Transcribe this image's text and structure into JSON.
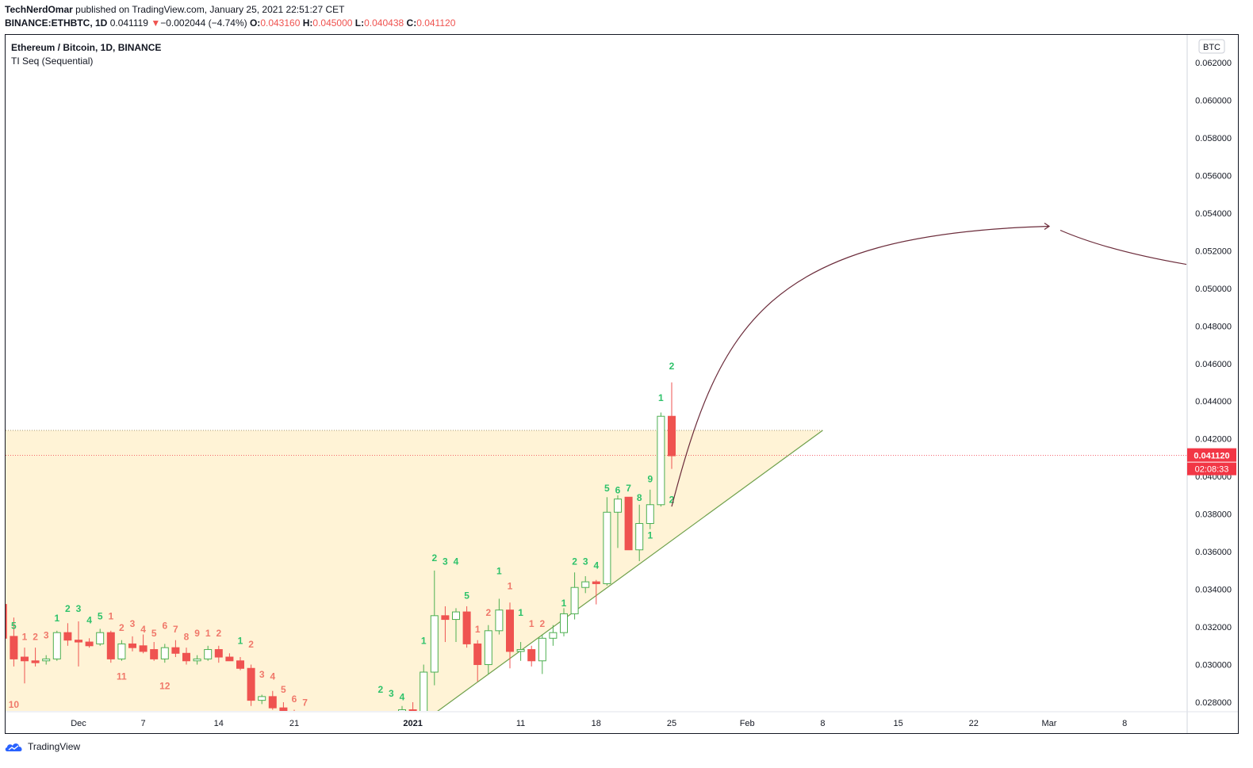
{
  "header": {
    "author": "TechNerdOmar",
    "published_text": "published on TradingView.com, January 25, 2021 22:51:27 CET",
    "symbol": "BINANCE:ETHBTC, 1D",
    "last": "0.041119",
    "change_arrow": "▼",
    "change": "−0.002044 (−4.74%)",
    "o_label": "O:",
    "o_value": "0.043160",
    "h_label": "H:",
    "h_value": "0.045000",
    "l_label": "L:",
    "l_value": "0.040438",
    "c_label": "C:",
    "c_value": "0.041120"
  },
  "legend": {
    "title": "Ethereum / Bitcoin, 1D, BINANCE",
    "indicator": "TI Seq (Sequential)"
  },
  "footer": {
    "brand": "TradingView"
  },
  "colors": {
    "up": "#26a69a",
    "up_fill": "#ffffff",
    "up_border": "#4caf50",
    "down": "#ef5350",
    "seq_up": "#2ec26a",
    "seq_down": "#f0786a",
    "zone_fill": "#fff3d6",
    "trendline": "#6ea04a",
    "arc": "#6b2b3a",
    "price_tag": "#f23645"
  },
  "chart_data": {
    "type": "candlestick",
    "symbol": "ETHBTC",
    "currency_label": "BTC",
    "ylim": [
      0.0276,
      0.063
    ],
    "y_ticks": [
      "0.062000",
      "0.060000",
      "0.058000",
      "0.056000",
      "0.054000",
      "0.052000",
      "0.050000",
      "0.048000",
      "0.046000",
      "0.044000",
      "0.042000",
      "0.040000",
      "0.038000",
      "0.036000",
      "0.034000",
      "0.032000",
      "0.030000",
      "0.028000"
    ],
    "x_ticks": [
      "Dec",
      "7",
      "14",
      "21",
      "2021",
      "11",
      "18",
      "25",
      "Feb",
      "8",
      "15",
      "22",
      "Mar",
      "8"
    ],
    "last_price_label": "0.041120",
    "countdown_label": "02:08:33",
    "candles": [
      {
        "date": "2020-11-24",
        "o": 0.0332,
        "h": 0.0332,
        "l": 0.0314,
        "c": 0.0314
      },
      {
        "date": "2020-11-25",
        "o": 0.0315,
        "h": 0.0325,
        "l": 0.0299,
        "c": 0.0303
      },
      {
        "date": "2020-11-26",
        "o": 0.0304,
        "h": 0.0309,
        "l": 0.029,
        "c": 0.0302
      },
      {
        "date": "2020-11-27",
        "o": 0.0302,
        "h": 0.0309,
        "l": 0.0299,
        "c": 0.0301
      },
      {
        "date": "2020-11-28",
        "o": 0.0302,
        "h": 0.0305,
        "l": 0.03,
        "c": 0.0303
      },
      {
        "date": "2020-11-29",
        "o": 0.0303,
        "h": 0.0318,
        "l": 0.0302,
        "c": 0.0317
      },
      {
        "date": "2020-11-30",
        "o": 0.0317,
        "h": 0.0322,
        "l": 0.031,
        "c": 0.0313
      },
      {
        "date": "2020-12-01",
        "o": 0.0313,
        "h": 0.0323,
        "l": 0.0299,
        "c": 0.0312
      },
      {
        "date": "2020-12-02",
        "o": 0.0312,
        "h": 0.0314,
        "l": 0.0309,
        "c": 0.031
      },
      {
        "date": "2020-12-03",
        "o": 0.0311,
        "h": 0.0319,
        "l": 0.031,
        "c": 0.0317
      },
      {
        "date": "2020-12-04",
        "o": 0.0317,
        "h": 0.0318,
        "l": 0.0301,
        "c": 0.0303
      },
      {
        "date": "2020-12-05",
        "o": 0.0303,
        "h": 0.0313,
        "l": 0.0302,
        "c": 0.0311
      },
      {
        "date": "2020-12-06",
        "o": 0.0311,
        "h": 0.0315,
        "l": 0.0307,
        "c": 0.0309
      },
      {
        "date": "2020-12-07",
        "o": 0.031,
        "h": 0.0316,
        "l": 0.0306,
        "c": 0.0307
      },
      {
        "date": "2020-12-08",
        "o": 0.0308,
        "h": 0.0312,
        "l": 0.0302,
        "c": 0.0303
      },
      {
        "date": "2020-12-09",
        "o": 0.0303,
        "h": 0.0311,
        "l": 0.0301,
        "c": 0.0309
      },
      {
        "date": "2020-12-10",
        "o": 0.0309,
        "h": 0.0313,
        "l": 0.0304,
        "c": 0.0306
      },
      {
        "date": "2020-12-11",
        "o": 0.0306,
        "h": 0.0309,
        "l": 0.03,
        "c": 0.0302
      },
      {
        "date": "2020-12-12",
        "o": 0.0302,
        "h": 0.0305,
        "l": 0.03,
        "c": 0.0303
      },
      {
        "date": "2020-12-13",
        "o": 0.0303,
        "h": 0.031,
        "l": 0.0302,
        "c": 0.0308
      },
      {
        "date": "2020-12-14",
        "o": 0.0308,
        "h": 0.031,
        "l": 0.0301,
        "c": 0.0304
      },
      {
        "date": "2020-12-15",
        "o": 0.0304,
        "h": 0.0306,
        "l": 0.0302,
        "c": 0.0302
      },
      {
        "date": "2020-12-16",
        "o": 0.0302,
        "h": 0.0304,
        "l": 0.0297,
        "c": 0.0298
      },
      {
        "date": "2020-12-17",
        "o": 0.0298,
        "h": 0.03,
        "l": 0.0278,
        "c": 0.0281
      },
      {
        "date": "2020-12-18",
        "o": 0.0281,
        "h": 0.0284,
        "l": 0.0279,
        "c": 0.0283
      },
      {
        "date": "2020-12-19",
        "o": 0.0283,
        "h": 0.0286,
        "l": 0.0276,
        "c": 0.0277
      },
      {
        "date": "2020-12-20",
        "o": 0.0277,
        "h": 0.028,
        "l": 0.027,
        "c": 0.0272
      },
      {
        "date": "2020-12-21",
        "o": 0.0272,
        "h": 0.0276,
        "l": 0.0268,
        "c": 0.027
      },
      {
        "date": "2020-12-22",
        "o": 0.027,
        "h": 0.0274,
        "l": 0.0264,
        "c": 0.0266
      },
      {
        "date": "2020-12-23",
        "o": 0.0266,
        "h": 0.027,
        "l": 0.0262,
        "c": 0.0263
      },
      {
        "date": "2020-12-24",
        "o": 0.0263,
        "h": 0.0267,
        "l": 0.026,
        "c": 0.0262
      },
      {
        "date": "2020-12-25",
        "o": 0.0262,
        "h": 0.0265,
        "l": 0.0258,
        "c": 0.026
      },
      {
        "date": "2020-12-26",
        "o": 0.026,
        "h": 0.0263,
        "l": 0.0254,
        "c": 0.0255
      },
      {
        "date": "2020-12-27",
        "o": 0.0255,
        "h": 0.026,
        "l": 0.0252,
        "c": 0.0258
      },
      {
        "date": "2020-12-28",
        "o": 0.0258,
        "h": 0.0266,
        "l": 0.0256,
        "c": 0.0264
      },
      {
        "date": "2020-12-29",
        "o": 0.0264,
        "h": 0.027,
        "l": 0.0262,
        "c": 0.0268
      },
      {
        "date": "2020-12-30",
        "o": 0.0268,
        "h": 0.0274,
        "l": 0.0266,
        "c": 0.0272
      },
      {
        "date": "2020-12-31",
        "o": 0.0272,
        "h": 0.0278,
        "l": 0.027,
        "c": 0.0276
      },
      {
        "date": "2021-01-01",
        "o": 0.0276,
        "h": 0.028,
        "l": 0.0265,
        "c": 0.027
      },
      {
        "date": "2021-01-02",
        "o": 0.027,
        "h": 0.03,
        "l": 0.0268,
        "c": 0.0296
      },
      {
        "date": "2021-01-03",
        "o": 0.0296,
        "h": 0.035,
        "l": 0.0289,
        "c": 0.0326
      },
      {
        "date": "2021-01-04",
        "o": 0.0326,
        "h": 0.0331,
        "l": 0.0312,
        "c": 0.0324
      },
      {
        "date": "2021-01-05",
        "o": 0.0324,
        "h": 0.033,
        "l": 0.0312,
        "c": 0.0328
      },
      {
        "date": "2021-01-06",
        "o": 0.0328,
        "h": 0.0331,
        "l": 0.0309,
        "c": 0.0311
      },
      {
        "date": "2021-01-07",
        "o": 0.0311,
        "h": 0.0313,
        "l": 0.0291,
        "c": 0.03
      },
      {
        "date": "2021-01-08",
        "o": 0.03,
        "h": 0.0321,
        "l": 0.0295,
        "c": 0.0318
      },
      {
        "date": "2021-01-09",
        "o": 0.0318,
        "h": 0.0335,
        "l": 0.0316,
        "c": 0.0329
      },
      {
        "date": "2021-01-10",
        "o": 0.0329,
        "h": 0.0333,
        "l": 0.0298,
        "c": 0.0307
      },
      {
        "date": "2021-01-11",
        "o": 0.0307,
        "h": 0.0312,
        "l": 0.0302,
        "c": 0.0308
      },
      {
        "date": "2021-01-12",
        "o": 0.0308,
        "h": 0.031,
        "l": 0.0299,
        "c": 0.0302
      },
      {
        "date": "2021-01-13",
        "o": 0.0302,
        "h": 0.0316,
        "l": 0.0295,
        "c": 0.0314
      },
      {
        "date": "2021-01-14",
        "o": 0.0314,
        "h": 0.0321,
        "l": 0.031,
        "c": 0.0317
      },
      {
        "date": "2021-01-15",
        "o": 0.0317,
        "h": 0.033,
        "l": 0.0315,
        "c": 0.0327
      },
      {
        "date": "2021-01-16",
        "o": 0.0327,
        "h": 0.0349,
        "l": 0.0324,
        "c": 0.0341
      },
      {
        "date": "2021-01-17",
        "o": 0.0341,
        "h": 0.0347,
        "l": 0.0338,
        "c": 0.0344
      },
      {
        "date": "2021-01-18",
        "o": 0.0344,
        "h": 0.0345,
        "l": 0.0332,
        "c": 0.0343
      },
      {
        "date": "2021-01-19",
        "o": 0.0343,
        "h": 0.0389,
        "l": 0.0342,
        "c": 0.0381
      },
      {
        "date": "2021-01-20",
        "o": 0.0381,
        "h": 0.039,
        "l": 0.0362,
        "c": 0.0388
      },
      {
        "date": "2021-01-21",
        "o": 0.0389,
        "h": 0.0389,
        "l": 0.0361,
        "c": 0.0361
      },
      {
        "date": "2021-01-22",
        "o": 0.0361,
        "h": 0.0385,
        "l": 0.0355,
        "c": 0.0375
      },
      {
        "date": "2021-01-23",
        "o": 0.0375,
        "h": 0.0393,
        "l": 0.0372,
        "c": 0.0385
      },
      {
        "date": "2021-01-24",
        "o": 0.0385,
        "h": 0.0434,
        "l": 0.0384,
        "c": 0.0432
      },
      {
        "date": "2021-01-25",
        "o": 0.0432,
        "h": 0.045,
        "l": 0.0404,
        "c": 0.0411
      }
    ],
    "sequential_labels": [
      {
        "date": "2020-11-24",
        "text": "1",
        "side": "up",
        "y": 0.0336
      },
      {
        "date": "2020-11-25",
        "text": "5",
        "side": "up",
        "y": 0.0319
      },
      {
        "date": "2020-11-26",
        "text": "1",
        "side": "down",
        "y": 0.0313
      },
      {
        "date": "2020-11-27",
        "text": "2",
        "side": "down",
        "y": 0.0313
      },
      {
        "date": "2020-11-28",
        "text": "3",
        "side": "down",
        "y": 0.0314
      },
      {
        "date": "2020-11-29",
        "text": "1",
        "side": "up",
        "y": 0.0323
      },
      {
        "date": "2020-11-30",
        "text": "2",
        "side": "up",
        "y": 0.0328
      },
      {
        "date": "2020-12-01",
        "text": "3",
        "side": "up",
        "y": 0.0328
      },
      {
        "date": "2020-12-02",
        "text": "4",
        "side": "up",
        "y": 0.0322
      },
      {
        "date": "2020-12-03",
        "text": "5",
        "side": "up",
        "y": 0.0324
      },
      {
        "date": "2020-12-04",
        "text": "1",
        "side": "down",
        "y": 0.0324
      },
      {
        "date": "2020-12-05",
        "text": "2",
        "side": "down",
        "y": 0.0318
      },
      {
        "date": "2020-12-06",
        "text": "3",
        "side": "down",
        "y": 0.032
      },
      {
        "date": "2020-12-07",
        "text": "4",
        "side": "down",
        "y": 0.0317
      },
      {
        "date": "2020-12-08",
        "text": "5",
        "side": "down",
        "y": 0.0315
      },
      {
        "date": "2020-12-09",
        "text": "6",
        "side": "down",
        "y": 0.0319
      },
      {
        "date": "2020-12-10",
        "text": "7",
        "side": "down",
        "y": 0.0317
      },
      {
        "date": "2020-12-11",
        "text": "8",
        "side": "down",
        "y": 0.0313
      },
      {
        "date": "2020-12-12",
        "text": "9",
        "side": "down",
        "y": 0.0315
      },
      {
        "date": "2020-12-13",
        "text": "1",
        "side": "down",
        "y": 0.0315
      },
      {
        "date": "2020-12-14",
        "text": "2",
        "side": "down",
        "y": 0.0315
      },
      {
        "date": "2020-12-16",
        "text": "1",
        "side": "up",
        "y": 0.0311
      },
      {
        "date": "2020-12-17",
        "text": "2",
        "side": "down",
        "y": 0.0309
      },
      {
        "date": "2020-12-18",
        "text": "3",
        "side": "down",
        "y": 0.0293
      },
      {
        "date": "2020-12-19",
        "text": "4",
        "side": "down",
        "y": 0.0292
      },
      {
        "date": "2020-12-20",
        "text": "5",
        "side": "down",
        "y": 0.0285
      },
      {
        "date": "2020-12-21",
        "text": "6",
        "side": "down",
        "y": 0.028
      },
      {
        "date": "2020-12-22",
        "text": "7",
        "side": "down",
        "y": 0.0278
      },
      {
        "date": "2020-12-05",
        "text": "11",
        "side": "down",
        "y": 0.0292
      },
      {
        "date": "2020-12-09",
        "text": "12",
        "side": "down",
        "y": 0.0287
      },
      {
        "date": "2020-11-25",
        "text": "10",
        "side": "down",
        "y": 0.0277
      },
      {
        "date": "2020-12-29",
        "text": "2",
        "side": "up",
        "y": 0.0285
      },
      {
        "date": "2020-12-30",
        "text": "3",
        "side": "up",
        "y": 0.0283
      },
      {
        "date": "2020-12-31",
        "text": "4",
        "side": "up",
        "y": 0.0281
      },
      {
        "date": "2021-01-02",
        "text": "1",
        "side": "up",
        "y": 0.0311
      },
      {
        "date": "2021-01-03",
        "text": "2",
        "side": "up",
        "y": 0.0355
      },
      {
        "date": "2021-01-04",
        "text": "3",
        "side": "up",
        "y": 0.0353
      },
      {
        "date": "2021-01-05",
        "text": "4",
        "side": "up",
        "y": 0.0353
      },
      {
        "date": "2021-01-06",
        "text": "5",
        "side": "up",
        "y": 0.0335
      },
      {
        "date": "2021-01-07",
        "text": "1",
        "side": "down",
        "y": 0.0317
      },
      {
        "date": "2021-01-08",
        "text": "2",
        "side": "down",
        "y": 0.0326
      },
      {
        "date": "2021-01-10",
        "text": "1",
        "side": "down",
        "y": 0.034
      },
      {
        "date": "2021-01-09",
        "text": "1",
        "side": "up",
        "y": 0.0348
      },
      {
        "date": "2021-01-11",
        "text": "1",
        "side": "up",
        "y": 0.0326
      },
      {
        "date": "2021-01-12",
        "text": "1",
        "side": "down",
        "y": 0.032
      },
      {
        "date": "2021-01-13",
        "text": "2",
        "side": "down",
        "y": 0.032
      },
      {
        "date": "2021-01-15",
        "text": "1",
        "side": "up",
        "y": 0.0331
      },
      {
        "date": "2021-01-16",
        "text": "2",
        "side": "up",
        "y": 0.0353
      },
      {
        "date": "2021-01-17",
        "text": "3",
        "side": "up",
        "y": 0.0353
      },
      {
        "date": "2021-01-18",
        "text": "4",
        "side": "up",
        "y": 0.0351
      },
      {
        "date": "2021-01-19",
        "text": "5",
        "side": "up",
        "y": 0.0392
      },
      {
        "date": "2021-01-20",
        "text": "6",
        "side": "up",
        "y": 0.0391
      },
      {
        "date": "2021-01-21",
        "text": "7",
        "side": "up",
        "y": 0.0392
      },
      {
        "date": "2021-01-22",
        "text": "8",
        "side": "up",
        "y": 0.0387
      },
      {
        "date": "2021-01-23",
        "text": "9",
        "side": "up",
        "y": 0.0397
      },
      {
        "date": "2021-01-23",
        "text": "1",
        "side": "up",
        "y": 0.0367
      },
      {
        "date": "2021-01-24",
        "text": "1",
        "side": "up",
        "y": 0.044
      },
      {
        "date": "2021-01-25",
        "text": "2",
        "side": "up",
        "y": 0.0457
      },
      {
        "date": "2021-01-25",
        "text": "2",
        "side": "up",
        "y": 0.0386
      }
    ],
    "annotations": {
      "zone": {
        "top_price": 0.04245,
        "trend_start_date": "2021-01-03",
        "trend_start_price": 0.0274,
        "trend_end_date": "2021-02-08",
        "trend_end_price": 0.04245
      },
      "projection_arc": {
        "start_date": "2021-01-25",
        "start_price": 0.0384,
        "peak_date": "2021-03-01",
        "peak_price": 0.0533,
        "end_date": "2021-03-18",
        "end_price": 0.0509
      }
    }
  }
}
